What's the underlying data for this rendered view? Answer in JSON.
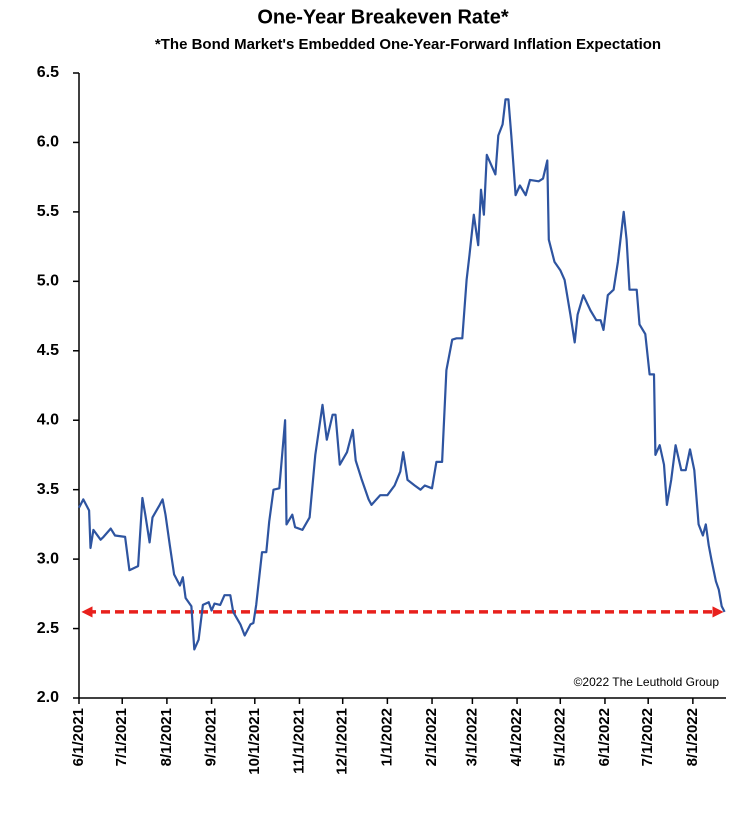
{
  "chart_data": {
    "type": "line",
    "title": "One-Year Breakeven Rate*",
    "subtitle": "*The Bond Market's Embedded One-Year-Forward Inflation Expectation",
    "annotation": "©2022 The Leuthold Group",
    "x": [
      "6/1/2021",
      "6/4/2021",
      "6/8/2021",
      "6/9/2021",
      "6/11/2021",
      "6/16/2021",
      "6/18/2021",
      "6/23/2021",
      "6/26/2021",
      "7/3/2021",
      "7/6/2021",
      "7/12/2021",
      "7/15/2021",
      "7/17/2021",
      "7/20/2021",
      "7/22/2021",
      "7/27/2021",
      "7/29/2021",
      "7/31/2021",
      "8/3/2021",
      "8/6/2021",
      "8/10/2021",
      "8/12/2021",
      "8/14/2021",
      "8/18/2021",
      "8/20/2021",
      "8/23/2021",
      "8/26/2021",
      "8/30/2021",
      "9/1/2021",
      "9/3/2021",
      "9/7/2021",
      "9/10/2021",
      "9/14/2021",
      "9/16/2021",
      "9/21/2021",
      "9/24/2021",
      "9/28/2021",
      "9/30/2021",
      "10/2/2021",
      "10/6/2021",
      "10/9/2021",
      "10/11/2021",
      "10/14/2021",
      "10/18/2021",
      "10/22/2021",
      "10/23/2021",
      "10/27/2021",
      "10/29/2021",
      "11/3/2021",
      "11/8/2021",
      "11/12/2021",
      "11/17/2021",
      "11/20/2021",
      "11/24/2021",
      "11/26/2021",
      "11/29/2021",
      "12/4/2021",
      "12/8/2021",
      "12/10/2021",
      "12/14/2021",
      "12/19/2021",
      "12/21/2021",
      "12/27/2021",
      "1/1/2022",
      "1/6/2022",
      "1/10/2022",
      "1/12/2022",
      "1/15/2022",
      "1/20/2022",
      "1/24/2022",
      "1/27/2022",
      "2/1/2022",
      "2/4/2022",
      "2/8/2022",
      "2/11/2022",
      "2/15/2022",
      "2/18/2022",
      "2/22/2022",
      "2/25/2022",
      "2/27/2022",
      "3/2/2022",
      "3/5/2022",
      "3/7/2022",
      "3/9/2022",
      "3/11/2022",
      "3/14/2022",
      "3/17/2022",
      "3/19/2022",
      "3/22/2022",
      "3/24/2022",
      "3/26/2022",
      "3/28/2022",
      "3/31/2022",
      "4/3/2022",
      "4/7/2022",
      "4/10/2022",
      "4/16/2022",
      "4/19/2022",
      "4/22/2022",
      "4/23/2022",
      "4/27/2022",
      "5/1/2022",
      "5/4/2022",
      "5/8/2022",
      "5/11/2022",
      "5/13/2022",
      "5/17/2022",
      "5/22/2022",
      "5/26/2022",
      "5/29/2022",
      "5/31/2022",
      "6/3/2022",
      "6/7/2022",
      "6/10/2022",
      "6/14/2022",
      "6/16/2022",
      "6/18/2022",
      "6/23/2022",
      "6/25/2022",
      "6/29/2022",
      "7/2/2022",
      "7/5/2022",
      "7/6/2022",
      "7/9/2022",
      "7/12/2022",
      "7/14/2022",
      "7/17/2022",
      "7/20/2022",
      "7/24/2022",
      "7/27/2022",
      "7/30/2022",
      "8/2/2022",
      "8/5/2022",
      "8/8/2022",
      "8/10/2022",
      "8/12/2022",
      "8/14/2022",
      "8/17/2022",
      "8/19/2022",
      "8/21/2022",
      "8/23/2022"
    ],
    "series": [
      {
        "name": "One-Year Breakeven Rate",
        "color": "#2e54a0",
        "values": [
          3.37,
          3.43,
          3.35,
          3.08,
          3.21,
          3.14,
          3.16,
          3.22,
          3.17,
          3.16,
          2.92,
          2.95,
          3.44,
          3.32,
          3.12,
          3.3,
          3.39,
          3.43,
          3.32,
          3.1,
          2.89,
          2.81,
          2.87,
          2.72,
          2.66,
          2.35,
          2.42,
          2.67,
          2.69,
          2.63,
          2.68,
          2.67,
          2.74,
          2.74,
          2.62,
          2.53,
          2.45,
          2.53,
          2.54,
          2.67,
          3.05,
          3.05,
          3.27,
          3.5,
          3.51,
          4.0,
          3.25,
          3.32,
          3.23,
          3.21,
          3.3,
          3.75,
          4.11,
          3.86,
          4.04,
          4.04,
          3.68,
          3.77,
          3.93,
          3.71,
          3.58,
          3.43,
          3.39,
          3.46,
          3.46,
          3.53,
          3.63,
          3.77,
          3.57,
          3.53,
          3.5,
          3.53,
          3.51,
          3.7,
          3.7,
          4.36,
          4.58,
          4.59,
          4.59,
          5.01,
          5.19,
          5.48,
          5.26,
          5.66,
          5.48,
          5.91,
          5.84,
          5.77,
          6.05,
          6.13,
          6.31,
          6.31,
          6.05,
          5.62,
          5.69,
          5.62,
          5.73,
          5.72,
          5.74,
          5.87,
          5.3,
          5.14,
          5.08,
          5.01,
          4.76,
          4.56,
          4.76,
          4.9,
          4.79,
          4.72,
          4.72,
          4.65,
          4.9,
          4.94,
          5.14,
          5.5,
          5.3,
          4.94,
          4.94,
          4.69,
          4.62,
          4.33,
          4.33,
          3.75,
          3.82,
          3.68,
          3.39,
          3.57,
          3.82,
          3.64,
          3.64,
          3.79,
          3.64,
          3.25,
          3.17,
          3.25,
          3.1,
          2.99,
          2.84,
          2.78,
          2.66,
          2.62
        ]
      }
    ],
    "xlim": [
      "6/1/2021",
      "8/24/2022"
    ],
    "xticks": [
      "6/1/2021",
      "7/1/2021",
      "8/1/2021",
      "9/1/2021",
      "10/1/2021",
      "11/1/2021",
      "12/1/2021",
      "1/1/2022",
      "2/1/2022",
      "3/1/2022",
      "4/1/2022",
      "5/1/2022",
      "6/1/2022",
      "7/1/2022",
      "8/1/2022"
    ],
    "ylim": [
      2.0,
      6.5
    ],
    "yticks": [
      {
        "value": 2.0,
        "label": "2.0"
      },
      {
        "value": 2.5,
        "label": "2.5"
      },
      {
        "value": 3.0,
        "label": "3.0"
      },
      {
        "value": 3.5,
        "label": "3.5"
      },
      {
        "value": 4.0,
        "label": "4.0"
      },
      {
        "value": 4.5,
        "label": "4.5"
      },
      {
        "value": 5.0,
        "label": "5.0"
      },
      {
        "value": 5.5,
        "label": "5.5"
      },
      {
        "value": 6.0,
        "label": "6.0"
      },
      {
        "value": 6.5,
        "label": "6.5"
      }
    ],
    "grid": false,
    "reference_line": {
      "value": 2.62,
      "color": "#e8201c"
    }
  }
}
